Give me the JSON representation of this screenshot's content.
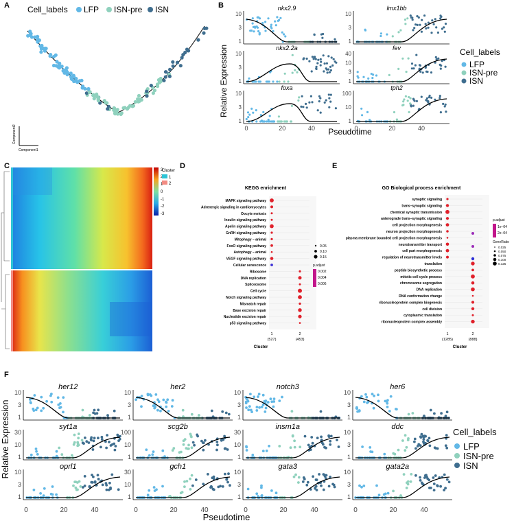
{
  "colors": {
    "LFP": "#62b8e6",
    "ISN-pre": "#8fd1bd",
    "ISN": "#3f6e8f",
    "curve": "#000000"
  },
  "panels": {
    "A": {
      "letter": "A",
      "legend_title": "Cell_labels",
      "legend": [
        "LFP",
        "ISN-pre",
        "ISN"
      ],
      "axis_y": "Component2",
      "axis_x": "Component1"
    },
    "B": {
      "letter": "B",
      "ylabel": "Relative Expression",
      "xlabel": "Pseudotime",
      "genes": [
        "nkx2.9",
        "lmx1bb",
        "nkx2.2a",
        "fev",
        "foxa",
        "tph2"
      ],
      "legend_title": "Cell_labels",
      "legend": [
        "LFP",
        "ISN-pre",
        "ISN"
      ],
      "x_ticks": [
        "0",
        "20",
        "40"
      ]
    },
    "C": {
      "letter": "C",
      "legend_title": "Cluster",
      "clusters": [
        "1",
        "2"
      ],
      "scale": [
        "3",
        "2",
        "1",
        "0",
        "-1",
        "-2",
        "-3"
      ]
    },
    "D": {
      "letter": "D",
      "title": "KEGG enrichment",
      "xlabel": "Cluster",
      "cluster_labels": [
        "1",
        "2"
      ],
      "cluster_counts": [
        "(527)",
        "(453)"
      ],
      "terms": [
        "MAPK signaling pathway",
        "Adrenergic signaling in cardiomyocytes",
        "Oocyte meiosis",
        "Insulin signaling pathway",
        "Apelin signaling pathway",
        "GnRH signaling pathway",
        "Mitophagy – animal",
        "FoxO signaling pathway",
        "Autophagy – animal",
        "VEGF signaling pathway",
        "Cellular senescence",
        "Ribosome",
        "DNA replication",
        "Spliceosome",
        "Cell cycle",
        "Notch signaling pathway",
        "Mismatch repair",
        "Base excision repair",
        "Nucleotide excision repair",
        "p53 signaling pathway"
      ],
      "size_legend": [
        "0.05",
        "0.10",
        "0.15"
      ],
      "padj_title": "p.adjust",
      "padj_ticks": [
        "0.002",
        "0.004",
        "0.006"
      ]
    },
    "E": {
      "letter": "E",
      "title": "GO Biological process enrichment",
      "xlabel": "Cluster",
      "cluster_labels": [
        "1",
        "2"
      ],
      "cluster_counts": [
        "(1285)",
        "(888)"
      ],
      "terms": [
        "synaptic signaling",
        "trans–synaptic signaling",
        "chemical synaptic transmission",
        "anterograde trans–synaptic signaling",
        "cell projection morphogenesis",
        "neuron projection morphogenesis",
        "plasma membrane bounded cell projection morphogenesis",
        "neurotransmitter transport",
        "cell part morphogenesis",
        "regulation of neurotransmitter levels",
        "translation",
        "peptide biosynthetic process",
        "mitotic cell cycle process",
        "chromosome segregation",
        "DNA replication",
        "DNA conformation change",
        "ribonucleoprotein complex biogenesis",
        "cell division",
        "cytoplasmic translation",
        "ribonucleoprotein complex assembly"
      ],
      "padj_title": "p.adjust",
      "padj_ticks": [
        "1e–04",
        "2e–04"
      ],
      "size_title": "GeneRatio",
      "size_legend": [
        "0.025",
        "0.050",
        "0.075",
        "0.100",
        "0.125"
      ]
    },
    "F": {
      "letter": "F",
      "ylabel": "Relative Expression",
      "xlabel": "Pseudotime",
      "genes": [
        "her12",
        "her2",
        "notch3",
        "her6",
        "syt1a",
        "scg2b",
        "insm1a",
        "ddc",
        "oprl1",
        "gch1",
        "gata3",
        "gata2a"
      ],
      "legend_title": "Cell_labels",
      "legend": [
        "LFP",
        "ISN-pre",
        "ISN"
      ],
      "x_ticks": [
        "0",
        "20",
        "40"
      ]
    }
  }
}
